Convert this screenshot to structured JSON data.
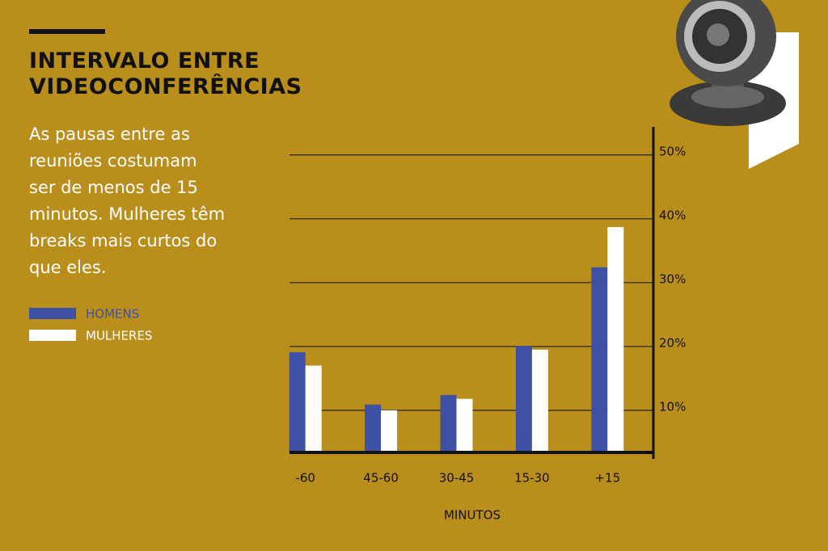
{
  "chart_data": {
    "type": "bar",
    "title": "INTERVALO ENTRE VIDEOCONFERÊNCIAS",
    "subtitle": "As pausas entre as reuniões costumam ser de menos de 15 minutos. Mulheres têm breaks mais curtos do que eles.",
    "x_label": "MINUTOS",
    "categories": [
      "-60",
      "45-60",
      "30-45",
      "15-30",
      "+15"
    ],
    "series": [
      {
        "name": "HOMENS",
        "color": "#3f51a5",
        "values": [
          19.1,
          10.9,
          12.4,
          20.1,
          32.4
        ]
      },
      {
        "name": "MULHERES",
        "color": "#ffffff",
        "values": [
          17.0,
          10.0,
          11.8,
          19.5,
          38.7
        ]
      }
    ],
    "ylim": [
      3.4,
      54.4
    ],
    "yticks": [
      {
        "value": 10,
        "label": "10%"
      },
      {
        "value": 20,
        "label": "20%"
      },
      {
        "value": 30,
        "label": "30%"
      },
      {
        "value": 40,
        "label": "40%"
      },
      {
        "value": 50,
        "label": "50%"
      }
    ],
    "grid": true
  }
}
